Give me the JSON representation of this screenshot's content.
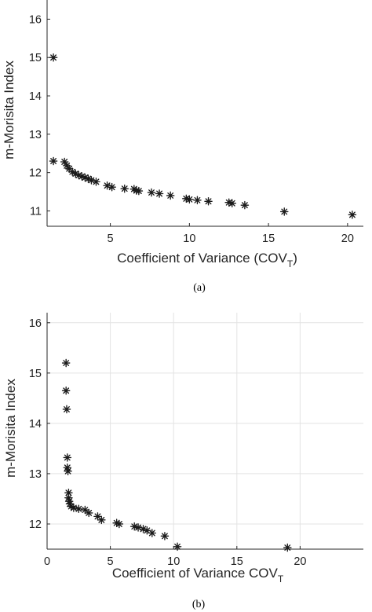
{
  "panels": [
    {
      "caption": "(a)",
      "chart_data": {
        "type": "scatter",
        "xlabel": "Coefficient of Variance (COV",
        "xlabel_sub": "T",
        "xlabel_tail": ")",
        "ylabel": "m-Morisita Index",
        "xlim": [
          1,
          21
        ],
        "ylim": [
          10.6,
          16.5
        ],
        "xticks": [
          5,
          10,
          15,
          20
        ],
        "xtick_labels": [
          "5",
          "10",
          "15",
          "20"
        ],
        "yticks": [
          11,
          12,
          13,
          14,
          15,
          16
        ],
        "ytick_labels": [
          "11",
          "12",
          "13",
          "14",
          "15",
          "16"
        ],
        "grid": false,
        "marker": "asterisk",
        "marker_color": "#1a1a1a",
        "points": [
          {
            "x": 1.4,
            "y": 15.0
          },
          {
            "x": 1.4,
            "y": 12.3
          },
          {
            "x": 2.1,
            "y": 12.28
          },
          {
            "x": 2.25,
            "y": 12.18
          },
          {
            "x": 2.4,
            "y": 12.1
          },
          {
            "x": 2.6,
            "y": 12.02
          },
          {
            "x": 2.8,
            "y": 11.97
          },
          {
            "x": 3.0,
            "y": 11.93
          },
          {
            "x": 3.2,
            "y": 11.9
          },
          {
            "x": 3.4,
            "y": 11.87
          },
          {
            "x": 3.6,
            "y": 11.84
          },
          {
            "x": 3.8,
            "y": 11.8
          },
          {
            "x": 4.1,
            "y": 11.76
          },
          {
            "x": 4.8,
            "y": 11.66
          },
          {
            "x": 5.1,
            "y": 11.62
          },
          {
            "x": 5.9,
            "y": 11.58
          },
          {
            "x": 6.5,
            "y": 11.57
          },
          {
            "x": 6.65,
            "y": 11.53
          },
          {
            "x": 6.8,
            "y": 11.52
          },
          {
            "x": 7.6,
            "y": 11.48
          },
          {
            "x": 8.1,
            "y": 11.45
          },
          {
            "x": 8.8,
            "y": 11.4
          },
          {
            "x": 9.8,
            "y": 11.32
          },
          {
            "x": 10.0,
            "y": 11.3
          },
          {
            "x": 10.5,
            "y": 11.28
          },
          {
            "x": 11.2,
            "y": 11.25
          },
          {
            "x": 12.5,
            "y": 11.22
          },
          {
            "x": 12.7,
            "y": 11.2
          },
          {
            "x": 13.5,
            "y": 11.15
          },
          {
            "x": 16.0,
            "y": 10.98
          },
          {
            "x": 20.3,
            "y": 10.9
          }
        ]
      }
    },
    {
      "caption": "(b)",
      "chart_data": {
        "type": "scatter",
        "xlabel": "Coefficient of Variance COV",
        "xlabel_sub": "T",
        "xlabel_tail": "",
        "ylabel": "m-Morisita Index",
        "xlim": [
          0,
          25
        ],
        "ylim": [
          11.5,
          16.2
        ],
        "xticks": [
          0,
          5,
          10,
          15,
          20
        ],
        "xtick_labels": [
          "0",
          "5",
          "10",
          "15",
          "20"
        ],
        "yticks": [
          12,
          13,
          14,
          15,
          16
        ],
        "ytick_labels": [
          "12",
          "13",
          "14",
          "15",
          "16"
        ],
        "grid": true,
        "marker": "asterisk",
        "marker_color": "#000000",
        "points": [
          {
            "x": 1.5,
            "y": 15.2
          },
          {
            "x": 1.5,
            "y": 14.65
          },
          {
            "x": 1.55,
            "y": 14.28
          },
          {
            "x": 1.6,
            "y": 13.32
          },
          {
            "x": 1.6,
            "y": 13.12
          },
          {
            "x": 1.65,
            "y": 13.05
          },
          {
            "x": 1.7,
            "y": 12.62
          },
          {
            "x": 1.7,
            "y": 12.52
          },
          {
            "x": 1.75,
            "y": 12.45
          },
          {
            "x": 1.8,
            "y": 12.4
          },
          {
            "x": 1.9,
            "y": 12.35
          },
          {
            "x": 2.1,
            "y": 12.32
          },
          {
            "x": 2.5,
            "y": 12.3
          },
          {
            "x": 3.0,
            "y": 12.28
          },
          {
            "x": 3.3,
            "y": 12.22
          },
          {
            "x": 4.0,
            "y": 12.15
          },
          {
            "x": 4.3,
            "y": 12.08
          },
          {
            "x": 5.5,
            "y": 12.02
          },
          {
            "x": 5.7,
            "y": 12.0
          },
          {
            "x": 6.9,
            "y": 11.95
          },
          {
            "x": 7.2,
            "y": 11.93
          },
          {
            "x": 7.6,
            "y": 11.9
          },
          {
            "x": 7.9,
            "y": 11.87
          },
          {
            "x": 8.3,
            "y": 11.82
          },
          {
            "x": 9.3,
            "y": 11.76
          },
          {
            "x": 10.3,
            "y": 11.55
          },
          {
            "x": 19.0,
            "y": 11.53
          }
        ]
      }
    }
  ]
}
